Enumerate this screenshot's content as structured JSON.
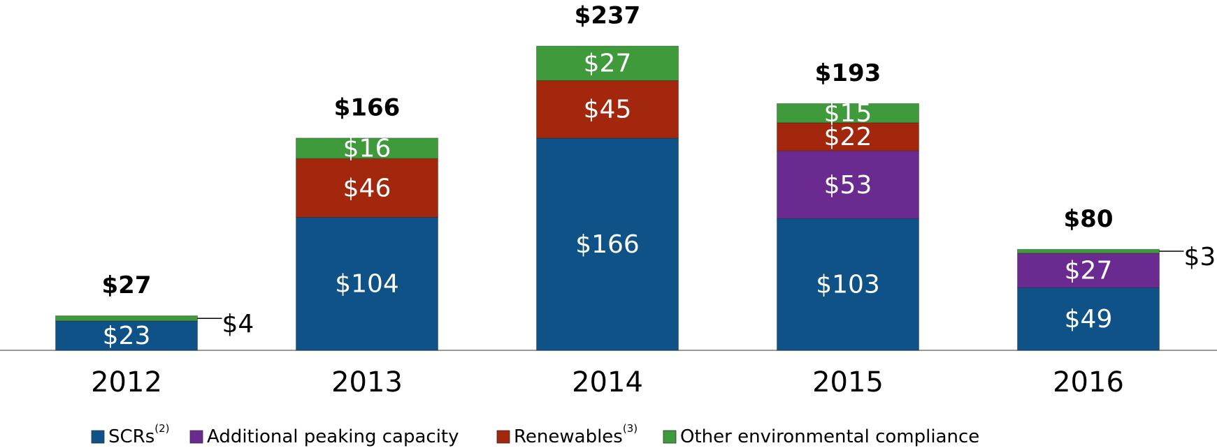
{
  "chart_data": {
    "type": "stacked_bar",
    "categories": [
      "2012",
      "2013",
      "2014",
      "2015",
      "2016"
    ],
    "series": [
      {
        "name": "SCRs",
        "superscript": "(2)",
        "color": "#0f5288",
        "values": [
          23,
          104,
          166,
          103,
          49
        ],
        "value_labels": [
          "$23",
          "$104",
          "$166",
          "$103",
          "$49"
        ]
      },
      {
        "name": "Additional peaking capacity",
        "color": "#6b2a90",
        "values": [
          null,
          null,
          null,
          53,
          27
        ],
        "value_labels": [
          null,
          null,
          null,
          "$53",
          "$27"
        ]
      },
      {
        "name": "Renewables",
        "superscript": "(3)",
        "color": "#a2270c",
        "values": [
          null,
          46,
          45,
          22,
          null
        ],
        "value_labels": [
          null,
          "$46",
          "$45",
          "$22",
          null
        ]
      },
      {
        "name": "Other environmental compliance",
        "color": "#3f9a3c",
        "values": [
          4,
          16,
          27,
          15,
          3
        ],
        "value_labels": [
          "$4",
          "$16",
          "$27",
          "$15",
          "$3"
        ]
      }
    ],
    "totals": [
      27,
      166,
      237,
      193,
      80
    ],
    "total_labels": [
      "$27",
      "$166",
      "$237",
      "$193",
      "$80"
    ],
    "ylim": [
      0,
      250
    ]
  }
}
